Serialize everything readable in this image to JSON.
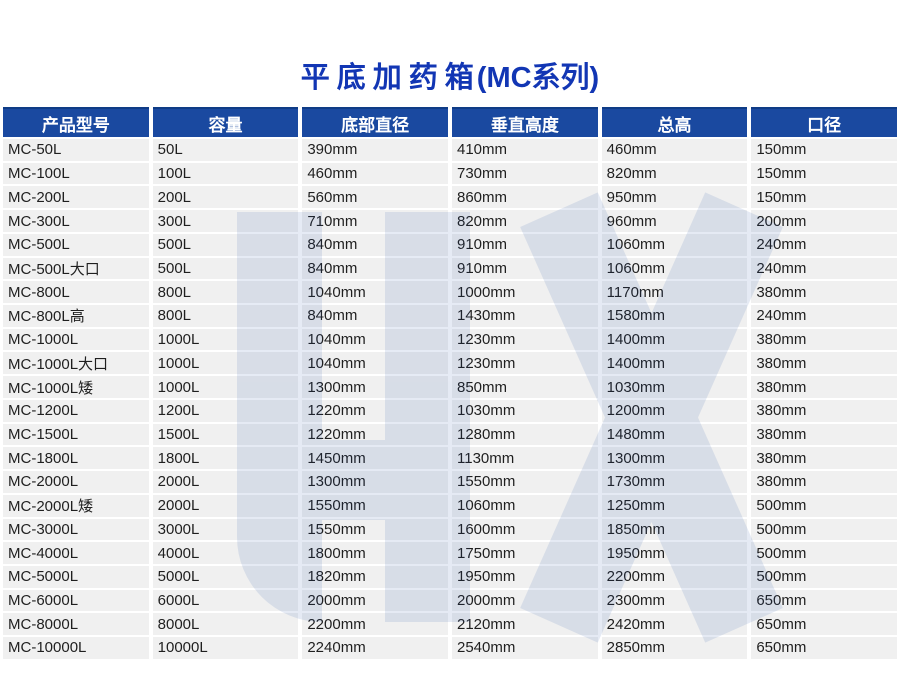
{
  "page": {
    "title_main": "平底加药箱",
    "title_suffix": "(MC系列)"
  },
  "colors": {
    "title_blue": "#1236b4",
    "header_bg": "#1a49a0",
    "header_text": "#ffffff",
    "row_bg": "#f0f0f0",
    "cell_text": "#1f1f1f",
    "watermark_blue": "#1b4aa3"
  },
  "watermark": {
    "icon": "hx-logo-watermark"
  },
  "table": {
    "headers": [
      "产品型号",
      "容量",
      "底部直径",
      "垂直高度",
      "总高",
      "口径"
    ],
    "rows": [
      [
        "MC-50L",
        "50L",
        "390mm",
        "410mm",
        "460mm",
        "150mm"
      ],
      [
        "MC-100L",
        "100L",
        "460mm",
        "730mm",
        "820mm",
        "150mm"
      ],
      [
        "MC-200L",
        "200L",
        "560mm",
        "860mm",
        "950mm",
        "150mm"
      ],
      [
        "MC-300L",
        "300L",
        "710mm",
        "820mm",
        "960mm",
        "200mm"
      ],
      [
        "MC-500L",
        "500L",
        "840mm",
        "910mm",
        "1060mm",
        "240mm"
      ],
      [
        "MC-500L大口",
        "500L",
        "840mm",
        "910mm",
        "1060mm",
        "240mm"
      ],
      [
        "MC-800L",
        "800L",
        "1040mm",
        "1000mm",
        "1170mm",
        "380mm"
      ],
      [
        "MC-800L高",
        "800L",
        "840mm",
        "1430mm",
        "1580mm",
        "240mm"
      ],
      [
        "MC-1000L",
        "1000L",
        "1040mm",
        "1230mm",
        "1400mm",
        "380mm"
      ],
      [
        "MC-1000L大口",
        "1000L",
        "1040mm",
        "1230mm",
        "1400mm",
        "380mm"
      ],
      [
        "MC-1000L矮",
        "1000L",
        "1300mm",
        "850mm",
        "1030mm",
        "380mm"
      ],
      [
        "MC-1200L",
        "1200L",
        "1220mm",
        "1030mm",
        "1200mm",
        "380mm"
      ],
      [
        "MC-1500L",
        "1500L",
        "1220mm",
        "1280mm",
        "1480mm",
        "380mm"
      ],
      [
        "MC-1800L",
        "1800L",
        "1450mm",
        "1130mm",
        "1300mm",
        "380mm"
      ],
      [
        "MC-2000L",
        "2000L",
        "1300mm",
        "1550mm",
        "1730mm",
        "380mm"
      ],
      [
        "MC-2000L矮",
        "2000L",
        "1550mm",
        "1060mm",
        "1250mm",
        "500mm"
      ],
      [
        "MC-3000L",
        "3000L",
        "1550mm",
        "1600mm",
        "1850mm",
        "500mm"
      ],
      [
        "MC-4000L",
        "4000L",
        "1800mm",
        "1750mm",
        "1950mm",
        "500mm"
      ],
      [
        "MC-5000L",
        "5000L",
        "1820mm",
        "1950mm",
        "2200mm",
        "500mm"
      ],
      [
        "MC-6000L",
        "6000L",
        "2000mm",
        "2000mm",
        "2300mm",
        "650mm"
      ],
      [
        "MC-8000L",
        "8000L",
        "2200mm",
        "2120mm",
        "2420mm",
        "650mm"
      ],
      [
        "MC-10000L",
        "10000L",
        "2240mm",
        "2540mm",
        "2850mm",
        "650mm"
      ]
    ]
  }
}
